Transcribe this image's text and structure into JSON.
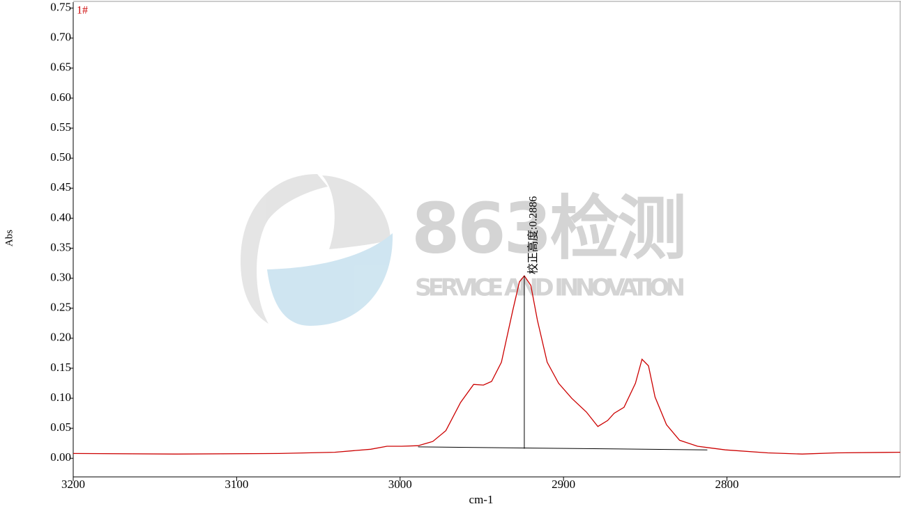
{
  "chart_data": {
    "type": "line",
    "series_label": "1#",
    "xlabel": "cm-1",
    "ylabel": "Abs",
    "watermark": {
      "title": "863检测",
      "subtitle": "SERVICE AND INNOVATION"
    },
    "color": "#cc0000",
    "x": [
      3200,
      3138,
      3074,
      3040,
      3018,
      3008,
      2999,
      2989,
      2980,
      2972,
      2963,
      2955,
      2949,
      2944,
      2938,
      2931,
      2927,
      2924,
      2920,
      2916,
      2910,
      2903,
      2895,
      2886,
      2879,
      2873,
      2869,
      2863,
      2856,
      2852,
      2848,
      2844,
      2837,
      2829,
      2818,
      2801,
      2775,
      2754,
      2733,
      2694
    ],
    "values": [
      0.008,
      0.007,
      0.008,
      0.01,
      0.015,
      0.02,
      0.02,
      0.021,
      0.028,
      0.046,
      0.093,
      0.123,
      0.122,
      0.128,
      0.16,
      0.247,
      0.294,
      0.304,
      0.288,
      0.23,
      0.16,
      0.125,
      0.1,
      0.077,
      0.053,
      0.063,
      0.075,
      0.085,
      0.125,
      0.165,
      0.154,
      0.102,
      0.056,
      0.03,
      0.02,
      0.014,
      0.009,
      0.007,
      0.009,
      0.01
    ],
    "baseline": {
      "x": [
        2989,
        2812
      ],
      "values": [
        0.019,
        0.014
      ]
    },
    "peak": {
      "x": 2924,
      "base": 0.016,
      "top": 0.304,
      "text": "校正高度:0.2886"
    },
    "xlim": [
      3200,
      2694
    ],
    "ylim": [
      -0.031,
      0.76
    ],
    "xticks": [
      3200,
      3100,
      3000,
      2900,
      2800
    ],
    "yticks": [
      {
        "value": 0,
        "label": "0.00"
      },
      0.05,
      {
        "value": 0.1,
        "label": "0.10"
      },
      0.15,
      {
        "value": 0.2,
        "label": "0.20"
      },
      0.25,
      {
        "value": 0.3,
        "label": "0.30"
      },
      0.35,
      {
        "value": 0.4,
        "label": "0.40"
      },
      0.45,
      {
        "value": 0.5,
        "label": "0.50"
      },
      0.55,
      {
        "value": 0.6,
        "label": "0.60"
      },
      0.65,
      {
        "value": 0.7,
        "label": "0.70"
      },
      0.75
    ]
  }
}
